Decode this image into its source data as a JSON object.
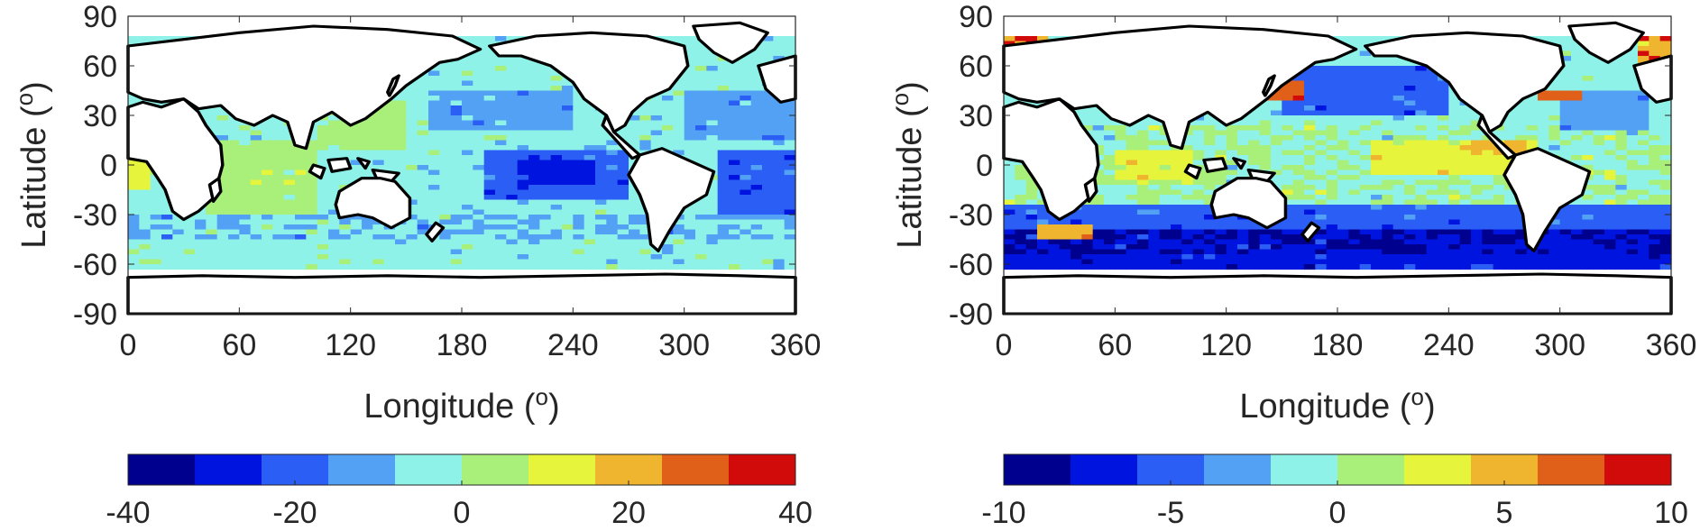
{
  "panels": [
    {
      "id": "left",
      "xlabel": "Longitude (",
      "ylabel": "Latitude (",
      "label_superscript": "o",
      "x_ticks": [
        "0",
        "60",
        "120",
        "180",
        "240",
        "300",
        "360"
      ],
      "y_ticks": [
        "90",
        "60",
        "30",
        "0",
        "-30",
        "-60",
        "-90"
      ],
      "colorbar": {
        "ticks": [
          "-40",
          "-20",
          "0",
          "20",
          "40"
        ],
        "range": [
          -40,
          40
        ]
      }
    },
    {
      "id": "right",
      "xlabel": "Longitude (",
      "ylabel": "Latitude (",
      "label_superscript": "o",
      "x_ticks": [
        "0",
        "60",
        "120",
        "180",
        "240",
        "300",
        "360"
      ],
      "y_ticks": [
        "90",
        "60",
        "30",
        "0",
        "-30",
        "-60",
        "-90"
      ],
      "colorbar": {
        "ticks": [
          "-10",
          "-5",
          "0",
          "5",
          "10"
        ],
        "range": [
          -10,
          10
        ]
      }
    }
  ],
  "chart_data": [
    {
      "type": "heatmap",
      "title": "",
      "xlabel": "Longitude (o)",
      "ylabel": "Latitude (o)",
      "xlim": [
        0,
        360
      ],
      "ylim": [
        -90,
        90
      ],
      "colorbar_range": [
        -40,
        40
      ],
      "colorbar_levels": [
        -40,
        -32,
        -24,
        -16,
        -8,
        0,
        8,
        16,
        24,
        32,
        40
      ],
      "colors": [
        "#00008f",
        "#0014e0",
        "#2b5ef5",
        "#52a1f5",
        "#8ff2e8",
        "#a8f07a",
        "#e6f53c",
        "#f0b52e",
        "#e0601a",
        "#d10a0a"
      ]
    },
    {
      "type": "heatmap",
      "title": "",
      "xlabel": "Longitude (o)",
      "ylabel": "Latitude (o)",
      "xlim": [
        0,
        360
      ],
      "ylim": [
        -90,
        90
      ],
      "colorbar_range": [
        -10,
        10
      ],
      "colorbar_levels": [
        -10,
        -8,
        -6,
        -4,
        -2,
        0,
        2,
        4,
        6,
        8,
        10
      ],
      "colors": [
        "#00008f",
        "#0014e0",
        "#2b5ef5",
        "#52a1f5",
        "#8ff2e8",
        "#a8f07a",
        "#e6f53c",
        "#f0b52e",
        "#e0601a",
        "#d10a0a"
      ]
    }
  ]
}
